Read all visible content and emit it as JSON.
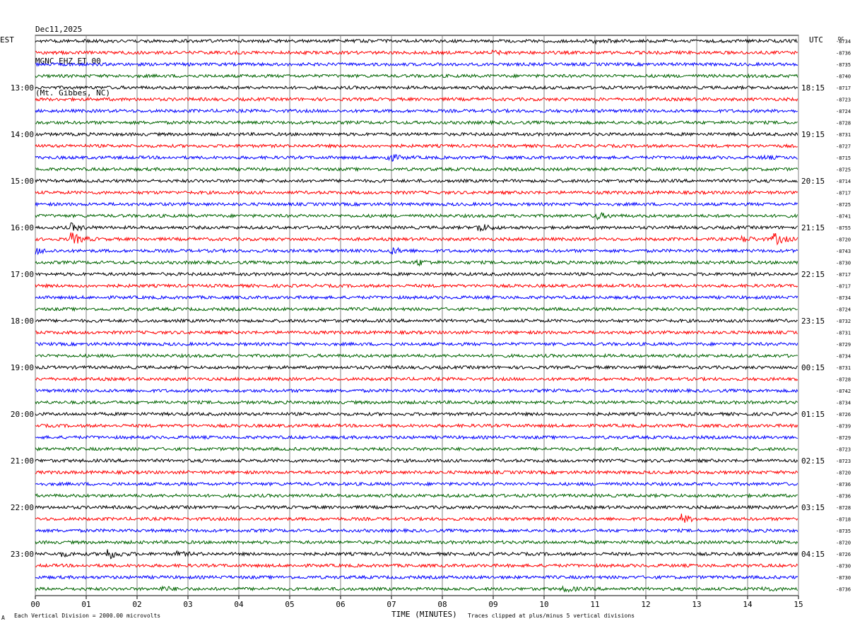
{
  "header": {
    "date": "Dec11,2025",
    "station": "MGNC EHZ ET 00",
    "location": "(Mt. Gibbes, NC)"
  },
  "left_tz": "EST",
  "right_tz": "UTC",
  "dc_header": "DC",
  "footer": {
    "scale_note": "Each Vertical Division = 2000.00 microvolts",
    "clip_note": "Traces clipped at plus/minus 5 vertical divisions",
    "corner_mark": "A"
  },
  "chart_data": {
    "type": "line",
    "xlabel": "TIME (MINUTES)",
    "xlim": [
      0,
      15
    ],
    "x_ticks": [
      "00",
      "01",
      "02",
      "03",
      "04",
      "05",
      "06",
      "07",
      "08",
      "09",
      "10",
      "11",
      "12",
      "13",
      "14",
      "15"
    ],
    "trace_colors": [
      "#000000",
      "#ff0000",
      "#0000ff",
      "#006400"
    ],
    "hour_labels_est": [
      "13:00",
      "14:00",
      "15:00",
      "16:00",
      "17:00",
      "18:00",
      "19:00",
      "20:00",
      "21:00",
      "22:00",
      "23:00"
    ],
    "hour_labels_utc": [
      "18:15",
      "19:15",
      "20:15",
      "21:15",
      "22:15",
      "23:15",
      "00:15",
      "01:15",
      "02:15",
      "03:15",
      "04:15"
    ],
    "dc_offsets": [
      -8734,
      -8736,
      -8735,
      -8740,
      -8717,
      -8723,
      -8724,
      -8728,
      -8731,
      -8727,
      -8715,
      -8725,
      -8714,
      -8717,
      -8725,
      -8741,
      -8755,
      -8720,
      -8743,
      -8730,
      -8717,
      -8717,
      -8734,
      -8724,
      -8732,
      -8731,
      -8729,
      -8734,
      -8731,
      -8728,
      -8742,
      -8734,
      -8726,
      -8739,
      -8729,
      -8723,
      -8723,
      -8720,
      -8736,
      -8736,
      -8728,
      -8718,
      -8735,
      -8720,
      -8726,
      -8730,
      -8730,
      -8736
    ],
    "events": [
      {
        "trace": 0,
        "minute": 11.0,
        "amp": 2.5
      },
      {
        "trace": 1,
        "minute": 9.0,
        "amp": 1.8
      },
      {
        "trace": 10,
        "minute": 6.9,
        "amp": 6
      },
      {
        "trace": 10,
        "minute": 14.3,
        "amp": 2
      },
      {
        "trace": 15,
        "minute": 11.0,
        "amp": 5
      },
      {
        "trace": 16,
        "minute": 0.7,
        "amp": 5
      },
      {
        "trace": 16,
        "minute": 8.7,
        "amp": 6
      },
      {
        "trace": 17,
        "minute": 0.7,
        "amp": 9
      },
      {
        "trace": 17,
        "minute": 13.9,
        "amp": 4
      },
      {
        "trace": 17,
        "minute": 14.5,
        "amp": 9
      },
      {
        "trace": 18,
        "minute": 0.0,
        "amp": 4
      },
      {
        "trace": 18,
        "minute": 7.0,
        "amp": 4
      },
      {
        "trace": 19,
        "minute": 7.5,
        "amp": 4
      },
      {
        "trace": 41,
        "minute": 12.7,
        "amp": 6
      },
      {
        "trace": 44,
        "minute": 1.4,
        "amp": 8
      },
      {
        "trace": 44,
        "minute": 0.5,
        "amp": 3
      },
      {
        "trace": 44,
        "minute": 2.8,
        "amp": 3
      },
      {
        "trace": 47,
        "minute": 2.5,
        "amp": 3
      },
      {
        "trace": 47,
        "minute": 14.3,
        "amp": 3
      },
      {
        "trace": 47,
        "minute": 10.4,
        "amp": 4
      }
    ]
  }
}
